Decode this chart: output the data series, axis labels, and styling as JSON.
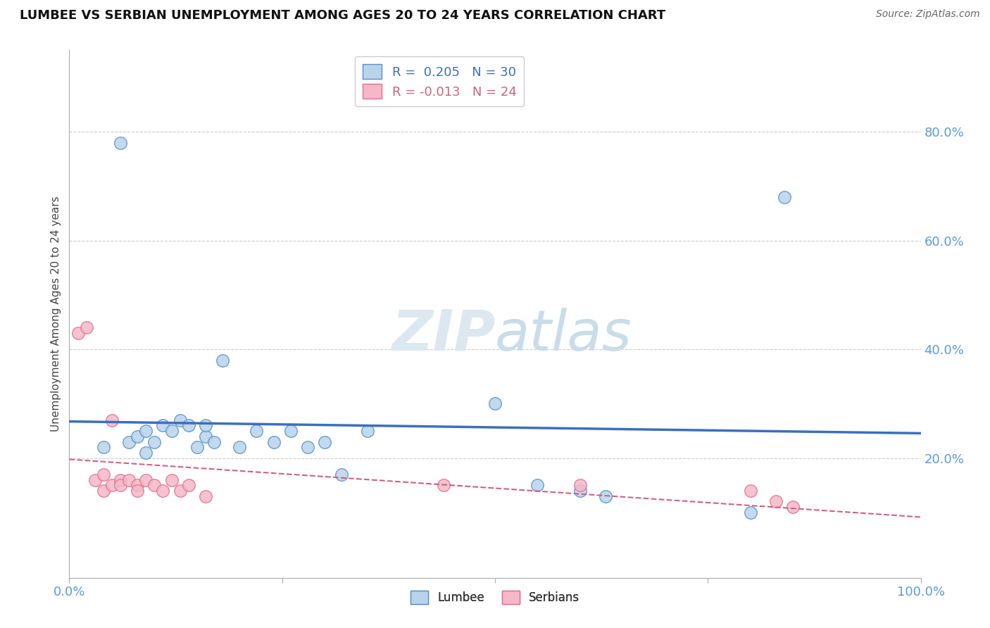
{
  "title": "LUMBEE VS SERBIAN UNEMPLOYMENT AMONG AGES 20 TO 24 YEARS CORRELATION CHART",
  "source": "Source: ZipAtlas.com",
  "ylabel": "Unemployment Among Ages 20 to 24 years",
  "xlim": [
    0.0,
    1.0
  ],
  "ylim": [
    -0.02,
    0.95
  ],
  "xtick_vals": [
    0.0,
    0.25,
    0.5,
    0.75,
    1.0
  ],
  "xtick_labels": [
    "0.0%",
    "",
    "",
    "",
    "100.0%"
  ],
  "ytick_labels_right": [
    "80.0%",
    "60.0%",
    "40.0%",
    "20.0%"
  ],
  "ytick_vals_right": [
    0.8,
    0.6,
    0.4,
    0.2
  ],
  "watermark_zip": "ZIP",
  "watermark_atlas": "atlas",
  "lumbee_R": 0.205,
  "lumbee_N": 30,
  "serbian_R": -0.013,
  "serbian_N": 24,
  "lumbee_color": "#b8d4eb",
  "serbian_color": "#f5b8c8",
  "lumbee_edge_color": "#5b8ec4",
  "serbian_edge_color": "#e07090",
  "lumbee_line_color": "#3b6fbe",
  "serbian_line_color": "#d06080",
  "lumbee_x": [
    0.04,
    0.06,
    0.07,
    0.08,
    0.09,
    0.09,
    0.1,
    0.11,
    0.12,
    0.13,
    0.14,
    0.15,
    0.16,
    0.16,
    0.17,
    0.18,
    0.2,
    0.22,
    0.24,
    0.26,
    0.28,
    0.3,
    0.32,
    0.35,
    0.5,
    0.55,
    0.6,
    0.63,
    0.8,
    0.84
  ],
  "lumbee_y": [
    0.22,
    0.78,
    0.23,
    0.24,
    0.21,
    0.25,
    0.23,
    0.26,
    0.25,
    0.27,
    0.26,
    0.22,
    0.24,
    0.26,
    0.23,
    0.38,
    0.22,
    0.25,
    0.23,
    0.25,
    0.22,
    0.23,
    0.17,
    0.25,
    0.3,
    0.15,
    0.14,
    0.13,
    0.1,
    0.68
  ],
  "serbian_x": [
    0.01,
    0.02,
    0.03,
    0.04,
    0.04,
    0.05,
    0.05,
    0.06,
    0.06,
    0.07,
    0.08,
    0.08,
    0.09,
    0.1,
    0.11,
    0.12,
    0.13,
    0.14,
    0.16,
    0.44,
    0.6,
    0.8,
    0.83,
    0.85
  ],
  "serbian_y": [
    0.43,
    0.44,
    0.16,
    0.17,
    0.14,
    0.15,
    0.27,
    0.16,
    0.15,
    0.16,
    0.15,
    0.14,
    0.16,
    0.15,
    0.14,
    0.16,
    0.14,
    0.15,
    0.13,
    0.15,
    0.15,
    0.14,
    0.12,
    0.11
  ],
  "grid_color": "#cccccc",
  "bg_color": "#ffffff"
}
